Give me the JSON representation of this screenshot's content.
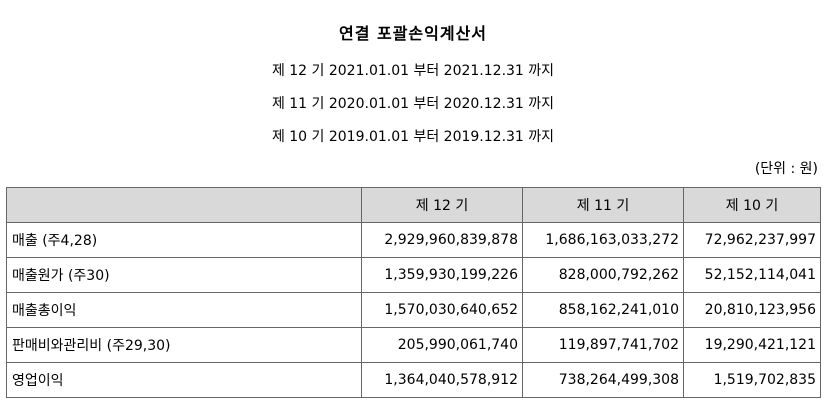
{
  "title": "연결 포괄손익계산서",
  "periods": [
    "제 12 기 2021.01.01 부터 2021.12.31 까지",
    "제 11 기 2020.01.01 부터 2020.12.31 까지",
    "제 10 기 2019.01.01 부터 2019.12.31 까지"
  ],
  "unit": "(단위 : 원)",
  "table": {
    "headers": [
      "",
      "제 12 기",
      "제 11 기",
      "제 10 기"
    ],
    "rows": [
      {
        "label": "매출 (주4,28)",
        "values": [
          "2,929,960,839,878",
          "1,686,163,033,272",
          "72,962,237,997"
        ]
      },
      {
        "label": "매출원가 (주30)",
        "values": [
          "1,359,930,199,226",
          "828,000,792,262",
          "52,152,114,041"
        ]
      },
      {
        "label": "매출총이익",
        "values": [
          "1,570,030,640,652",
          "858,162,241,010",
          "20,810,123,956"
        ]
      },
      {
        "label": " 판매비와관리비 (주29,30)",
        "values": [
          "205,990,061,740",
          "119,897,741,702",
          "19,290,421,121"
        ]
      },
      {
        "label": "영업이익",
        "values": [
          "1,364,040,578,912",
          "738,264,499,308",
          "1,519,702,835"
        ]
      }
    ]
  }
}
